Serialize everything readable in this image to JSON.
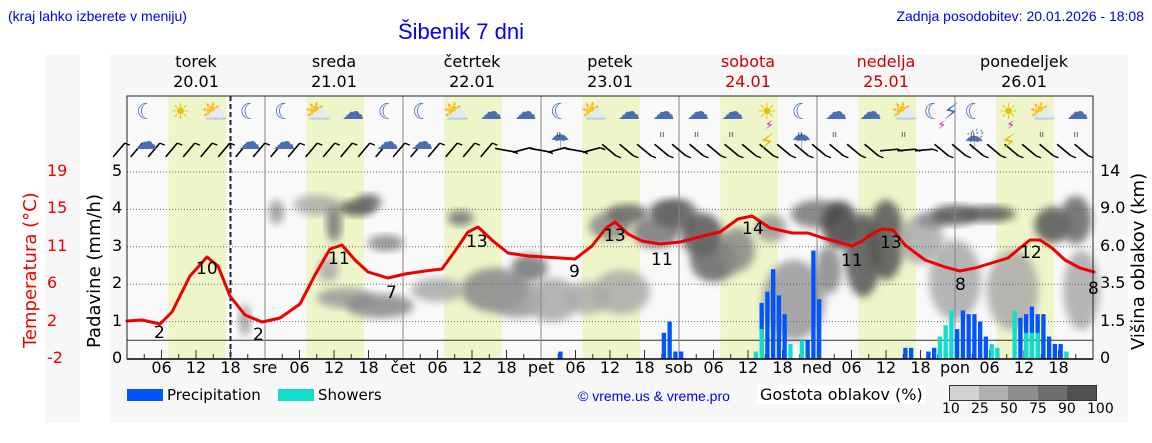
{
  "header": {
    "hint": "(kraj lahko izberete v meniju)",
    "title": "Šibenik 7 dni",
    "updated": "Zadnja posodobitev: 20.01.2026 - 18:08"
  },
  "days": [
    {
      "name": "torek",
      "date": "20.01",
      "weekend": false
    },
    {
      "name": "sreda",
      "date": "21.01",
      "weekend": false
    },
    {
      "name": "četrtek",
      "date": "22.01",
      "weekend": false
    },
    {
      "name": "petek",
      "date": "23.01",
      "weekend": false
    },
    {
      "name": "sobota",
      "date": "24.01",
      "weekend": true
    },
    {
      "name": "nedelja",
      "date": "25.01",
      "weekend": true
    },
    {
      "name": "ponedeljek",
      "date": "26.01",
      "weekend": false
    }
  ],
  "axes": {
    "temp_label": "Temperatura (°C)",
    "temp_ticks": [
      "19",
      "15",
      "11",
      "6",
      "2",
      "-2"
    ],
    "precip_label": "Padavine (mm/h)",
    "precip_ticks": [
      "5",
      "4",
      "3",
      "2",
      "1",
      "0"
    ],
    "cloud_label": "Višina oblakov (km)",
    "cloud_ticks": [
      "14",
      "9.0",
      "6.0",
      "3.5",
      "1.5",
      "0"
    ],
    "x_ticks": [
      "06",
      "12",
      "18",
      "sre",
      "06",
      "12",
      "18",
      "čet",
      "06",
      "12",
      "18",
      "pet",
      "06",
      "12",
      "18",
      "sob",
      "06",
      "12",
      "18",
      "ned",
      "06",
      "12",
      "18",
      "pon",
      "06",
      "12",
      "18"
    ]
  },
  "legend": {
    "precipitation": "Precipitation",
    "showers": "Showers",
    "copyright": "© vreme.us & vreme.pro",
    "cloud_density_label": "Gostota oblakov (%)",
    "cloud_density_ticks": [
      "10",
      "25",
      "50",
      "75",
      "90",
      "100"
    ]
  },
  "colors": {
    "precipitation": "#0055ff",
    "showers": "#11ddcc",
    "temperature": "#ee0000",
    "daylight": "#eef5c8",
    "title": "#0000ee",
    "weekend": "#cc0000"
  },
  "icons": [
    "moon-cloud-icon",
    "sun-icon",
    "sun-cloud-icon",
    "moon-cloud-icon",
    "moon-cloud-icon",
    "sun-cloud-icon",
    "cloud-icon",
    "moon-cloud-icon",
    "moon-cloud-icon",
    "sun-cloud-icon",
    "cloud-icon",
    "cloud-icon",
    "moon-rain-icon",
    "sun-cloud-icon",
    "cloud-icon",
    "cloud-rain-icon",
    "cloud-rain-icon",
    "cloud-rain-icon",
    "sun-thunder-icon",
    "moon-rain-icon",
    "cloud-rain-icon",
    "cloud-icon",
    "sun-rain-icon",
    "moon-thunder-icon",
    "moon-heavy-rain-icon",
    "sun-thunder-icon",
    "sun-heavy-rain-icon",
    "cloud-rain-icon"
  ],
  "chart_data": {
    "type": "line+bar+heatmap",
    "title": "Šibenik 7 dni",
    "xlabel": "",
    "ylabel": "Padavine (mm/h)",
    "y2label": "Višina oblakov (km)",
    "temp_axis_label": "Temperatura (°C)",
    "ylim": [
      0,
      5
    ],
    "categories": [
      "20.01",
      "21.01",
      "22.01",
      "23.01",
      "24.01",
      "25.01",
      "26.01"
    ],
    "temperature_labels": [
      {
        "day": "torek",
        "hour": 6,
        "value": 2
      },
      {
        "day": "torek",
        "hour": 14,
        "value": 10
      },
      {
        "day": "sreda",
        "hour": 0,
        "value": 2
      },
      {
        "day": "sreda",
        "hour": 13,
        "value": 11
      },
      {
        "day": "sreda",
        "hour": 22,
        "value": 7
      },
      {
        "day": "četrtek",
        "hour": 13,
        "value": 13
      },
      {
        "day": "petek",
        "hour": 6,
        "value": 9
      },
      {
        "day": "petek",
        "hour": 13,
        "value": 13
      },
      {
        "day": "petek",
        "hour": 21,
        "value": 11
      },
      {
        "day": "sobota",
        "hour": 13,
        "value": 14
      },
      {
        "day": "nedelja",
        "hour": 6,
        "value": 11
      },
      {
        "day": "nedelja",
        "hour": 13,
        "value": 13
      },
      {
        "day": "ponedeljek",
        "hour": 1,
        "value": 8
      },
      {
        "day": "ponedeljek",
        "hour": 13,
        "value": 12
      },
      {
        "day": "ponedeljek",
        "hour": 24,
        "value": 8
      }
    ],
    "series": [
      {
        "name": "Precipitation",
        "unit": "mm/h",
        "points": [
          {
            "t": "pet 03",
            "v": 0.2
          },
          {
            "t": "pet 21",
            "v": 0.7
          },
          {
            "t": "pet 22",
            "v": 1.0
          },
          {
            "t": "pet 23",
            "v": 0.2
          },
          {
            "t": "sob 00",
            "v": 0.2
          },
          {
            "t": "sob 14",
            "v": 1.5
          },
          {
            "t": "sob 15",
            "v": 1.8
          },
          {
            "t": "sob 16",
            "v": 2.4
          },
          {
            "t": "sob 17",
            "v": 1.7
          },
          {
            "t": "sob 18",
            "v": 1.2
          },
          {
            "t": "sob 22",
            "v": 0.5
          },
          {
            "t": "sob 23",
            "v": 2.9
          },
          {
            "t": "ned 00",
            "v": 1.6
          },
          {
            "t": "ned 15",
            "v": 0.3
          },
          {
            "t": "ned 16",
            "v": 0.3
          },
          {
            "t": "ned 19",
            "v": 0.2
          },
          {
            "t": "ned 20",
            "v": 0.3
          },
          {
            "t": "pon 00",
            "v": 0.8
          },
          {
            "t": "pon 01",
            "v": 1.3
          },
          {
            "t": "pon 02",
            "v": 1.2
          },
          {
            "t": "pon 03",
            "v": 1.2
          },
          {
            "t": "pon 04",
            "v": 1.0
          },
          {
            "t": "pon 05",
            "v": 0.6
          },
          {
            "t": "pon 11",
            "v": 1.1
          },
          {
            "t": "pon 12",
            "v": 1.2
          },
          {
            "t": "pon 13",
            "v": 1.4
          },
          {
            "t": "pon 14",
            "v": 1.2
          },
          {
            "t": "pon 15",
            "v": 1.2
          },
          {
            "t": "pon 16",
            "v": 0.6
          },
          {
            "t": "pon 17",
            "v": 0.4
          },
          {
            "t": "pon 18",
            "v": 0.4
          }
        ]
      },
      {
        "name": "Showers",
        "unit": "mm/h",
        "points": [
          {
            "t": "sob 13",
            "v": 0.2
          },
          {
            "t": "sob 14",
            "v": 0.8
          },
          {
            "t": "sob 19",
            "v": 0.4
          },
          {
            "t": "sob 21",
            "v": 0.5
          },
          {
            "t": "ned 21",
            "v": 0.6
          },
          {
            "t": "ned 22",
            "v": 0.9
          },
          {
            "t": "ned 23",
            "v": 1.3
          },
          {
            "t": "pon 06",
            "v": 0.4
          },
          {
            "t": "pon 07",
            "v": 0.3
          },
          {
            "t": "pon 10",
            "v": 1.3
          },
          {
            "t": "pon 12",
            "v": 0.7
          },
          {
            "t": "pon 13",
            "v": 0.7
          },
          {
            "t": "pon 14",
            "v": 0.7
          },
          {
            "t": "pon 19",
            "v": 0.2
          }
        ]
      }
    ],
    "cloud_density_scale": [
      10,
      25,
      50,
      75,
      90,
      100
    ],
    "grid": true
  }
}
